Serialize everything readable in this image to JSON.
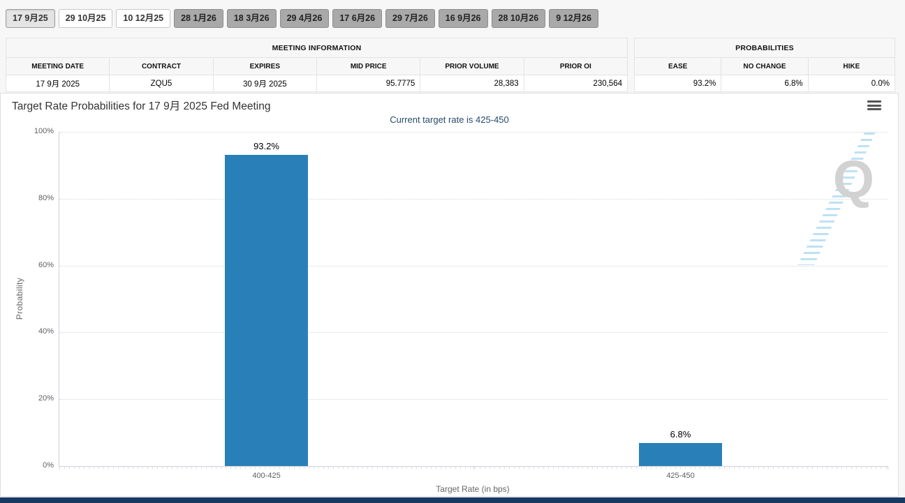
{
  "tabs": {
    "items": [
      {
        "label": "17 9月25",
        "state": "selected"
      },
      {
        "label": "29 10月25",
        "state": "normal"
      },
      {
        "label": "10 12月25",
        "state": "normal"
      },
      {
        "label": "28 1月26",
        "state": "disabled"
      },
      {
        "label": "18 3月26",
        "state": "disabled"
      },
      {
        "label": "29 4月26",
        "state": "disabled"
      },
      {
        "label": "17 6月26",
        "state": "disabled"
      },
      {
        "label": "29 7月26",
        "state": "disabled"
      },
      {
        "label": "16 9月26",
        "state": "disabled"
      },
      {
        "label": "28 10月26",
        "state": "disabled"
      },
      {
        "label": "9 12月26",
        "state": "disabled"
      }
    ]
  },
  "meeting_information": {
    "title": "MEETING INFORMATION",
    "columns": [
      "MEETING DATE",
      "CONTRACT",
      "EXPIRES",
      "MID PRICE",
      "PRIOR VOLUME",
      "PRIOR OI"
    ],
    "row": [
      "17 9月 2025",
      "ZQU5",
      "30 9月 2025",
      "95.7775",
      "28,383",
      "230,564"
    ]
  },
  "probabilities": {
    "title": "PROBABILITIES",
    "columns": [
      "EASE",
      "NO CHANGE",
      "HIKE"
    ],
    "row": [
      "93.2%",
      "6.8%",
      "0.0%"
    ]
  },
  "chart": {
    "title": "Target Rate Probabilities for 17 9月 2025 Fed Meeting",
    "subtitle": "Current target rate is 425-450",
    "menu_icon": "hamburger-icon",
    "watermark_letter": "Q"
  },
  "chart_data": {
    "type": "bar",
    "title": "Target Rate Probabilities for 17 9月 2025 Fed Meeting",
    "subtitle": "Current target rate is 425-450",
    "categories": [
      "400-425",
      "425-450"
    ],
    "values": [
      93.2,
      6.8
    ],
    "value_labels": [
      "93.2%",
      "6.8%"
    ],
    "xlabel": "Target Rate (in bps)",
    "ylabel": "Probability",
    "ylim": [
      0,
      100
    ],
    "yticks": [
      "0%",
      "20%",
      "40%",
      "60%",
      "80%",
      "100%"
    ],
    "grid": "dotted-horizontal",
    "legend": "none",
    "bar_color": "#2980b9"
  },
  "colors": {
    "bar": "#2980b9",
    "subtitle_text": "#274b6d",
    "footer_bar": "#173a64",
    "tab_disabled_bg": "#a9a9a9"
  }
}
